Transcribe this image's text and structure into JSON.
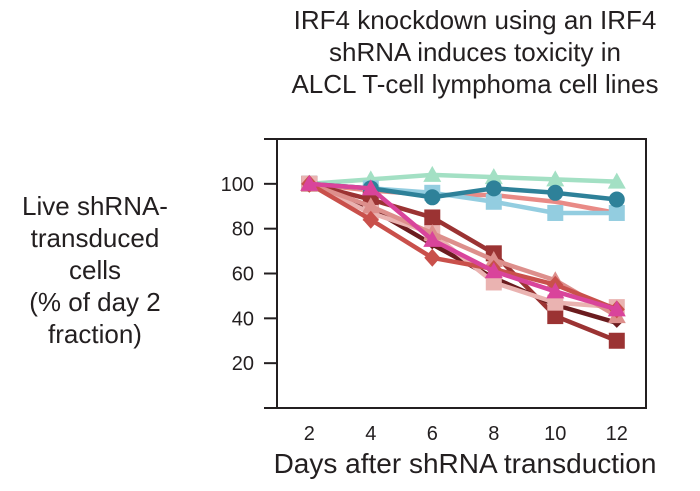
{
  "chart_data": {
    "type": "line",
    "title": [
      "IRF4 knockdown using an IRF4",
      "shRNA induces toxicity in",
      "ALCL T-cell lymphoma cell lines"
    ],
    "ylabel": [
      "Live shRNA-",
      "transduced",
      "cells",
      "(% of day 2",
      "fraction)"
    ],
    "xlabel": "Days after shRNA transduction",
    "x": [
      2,
      4,
      6,
      8,
      10,
      12
    ],
    "xticks": [
      "2",
      "4",
      "6",
      "8",
      "10",
      "12"
    ],
    "yticks": [
      "20",
      "40",
      "60",
      "80",
      "100"
    ],
    "ytick_values": [
      20,
      40,
      60,
      80,
      100
    ],
    "xlim": [
      0.95,
      12.95
    ],
    "ylim": [
      0,
      120
    ],
    "grid": false,
    "series": [
      {
        "name": "control-mint-triangle",
        "color": "#a3e0c4",
        "marker": "triangle",
        "values": [
          100,
          102,
          104,
          103,
          102,
          101
        ]
      },
      {
        "name": "control-salmon",
        "color": "#e98a86",
        "marker": "none",
        "values": [
          100,
          97,
          95,
          95,
          92,
          87
        ]
      },
      {
        "name": "control-lightblue-square",
        "color": "#93cde0",
        "marker": "square",
        "values": [
          100,
          98,
          96,
          92,
          87,
          87
        ]
      },
      {
        "name": "control-teal-circle",
        "color": "#2e8199",
        "marker": "circle",
        "values": [
          100,
          98,
          94,
          98,
          96,
          93
        ]
      },
      {
        "name": "irf4-darkred-square",
        "color": "#9b3333",
        "marker": "square",
        "values": [
          100,
          93,
          85,
          69,
          41,
          30
        ]
      },
      {
        "name": "irf4-maroon",
        "color": "#6b1c1f",
        "marker": "small-diamond",
        "values": [
          100,
          89,
          73,
          58,
          46,
          38
        ]
      },
      {
        "name": "irf4-lightpink-square",
        "color": "#eab3b1",
        "marker": "square",
        "values": [
          100,
          87,
          78,
          56,
          47,
          45
        ]
      },
      {
        "name": "irf4-pink-triangle",
        "color": "#dd8f8c",
        "marker": "triangle",
        "values": [
          100,
          90,
          78,
          66,
          57,
          41
        ]
      },
      {
        "name": "irf4-brick-diamond",
        "color": "#c9504b",
        "marker": "diamond",
        "values": [
          100,
          84,
          67,
          62,
          55,
          44
        ]
      },
      {
        "name": "irf4-magenta-triangle",
        "color": "#d9449b",
        "marker": "triangle",
        "values": [
          100,
          98,
          75,
          61,
          52,
          44
        ]
      }
    ]
  }
}
